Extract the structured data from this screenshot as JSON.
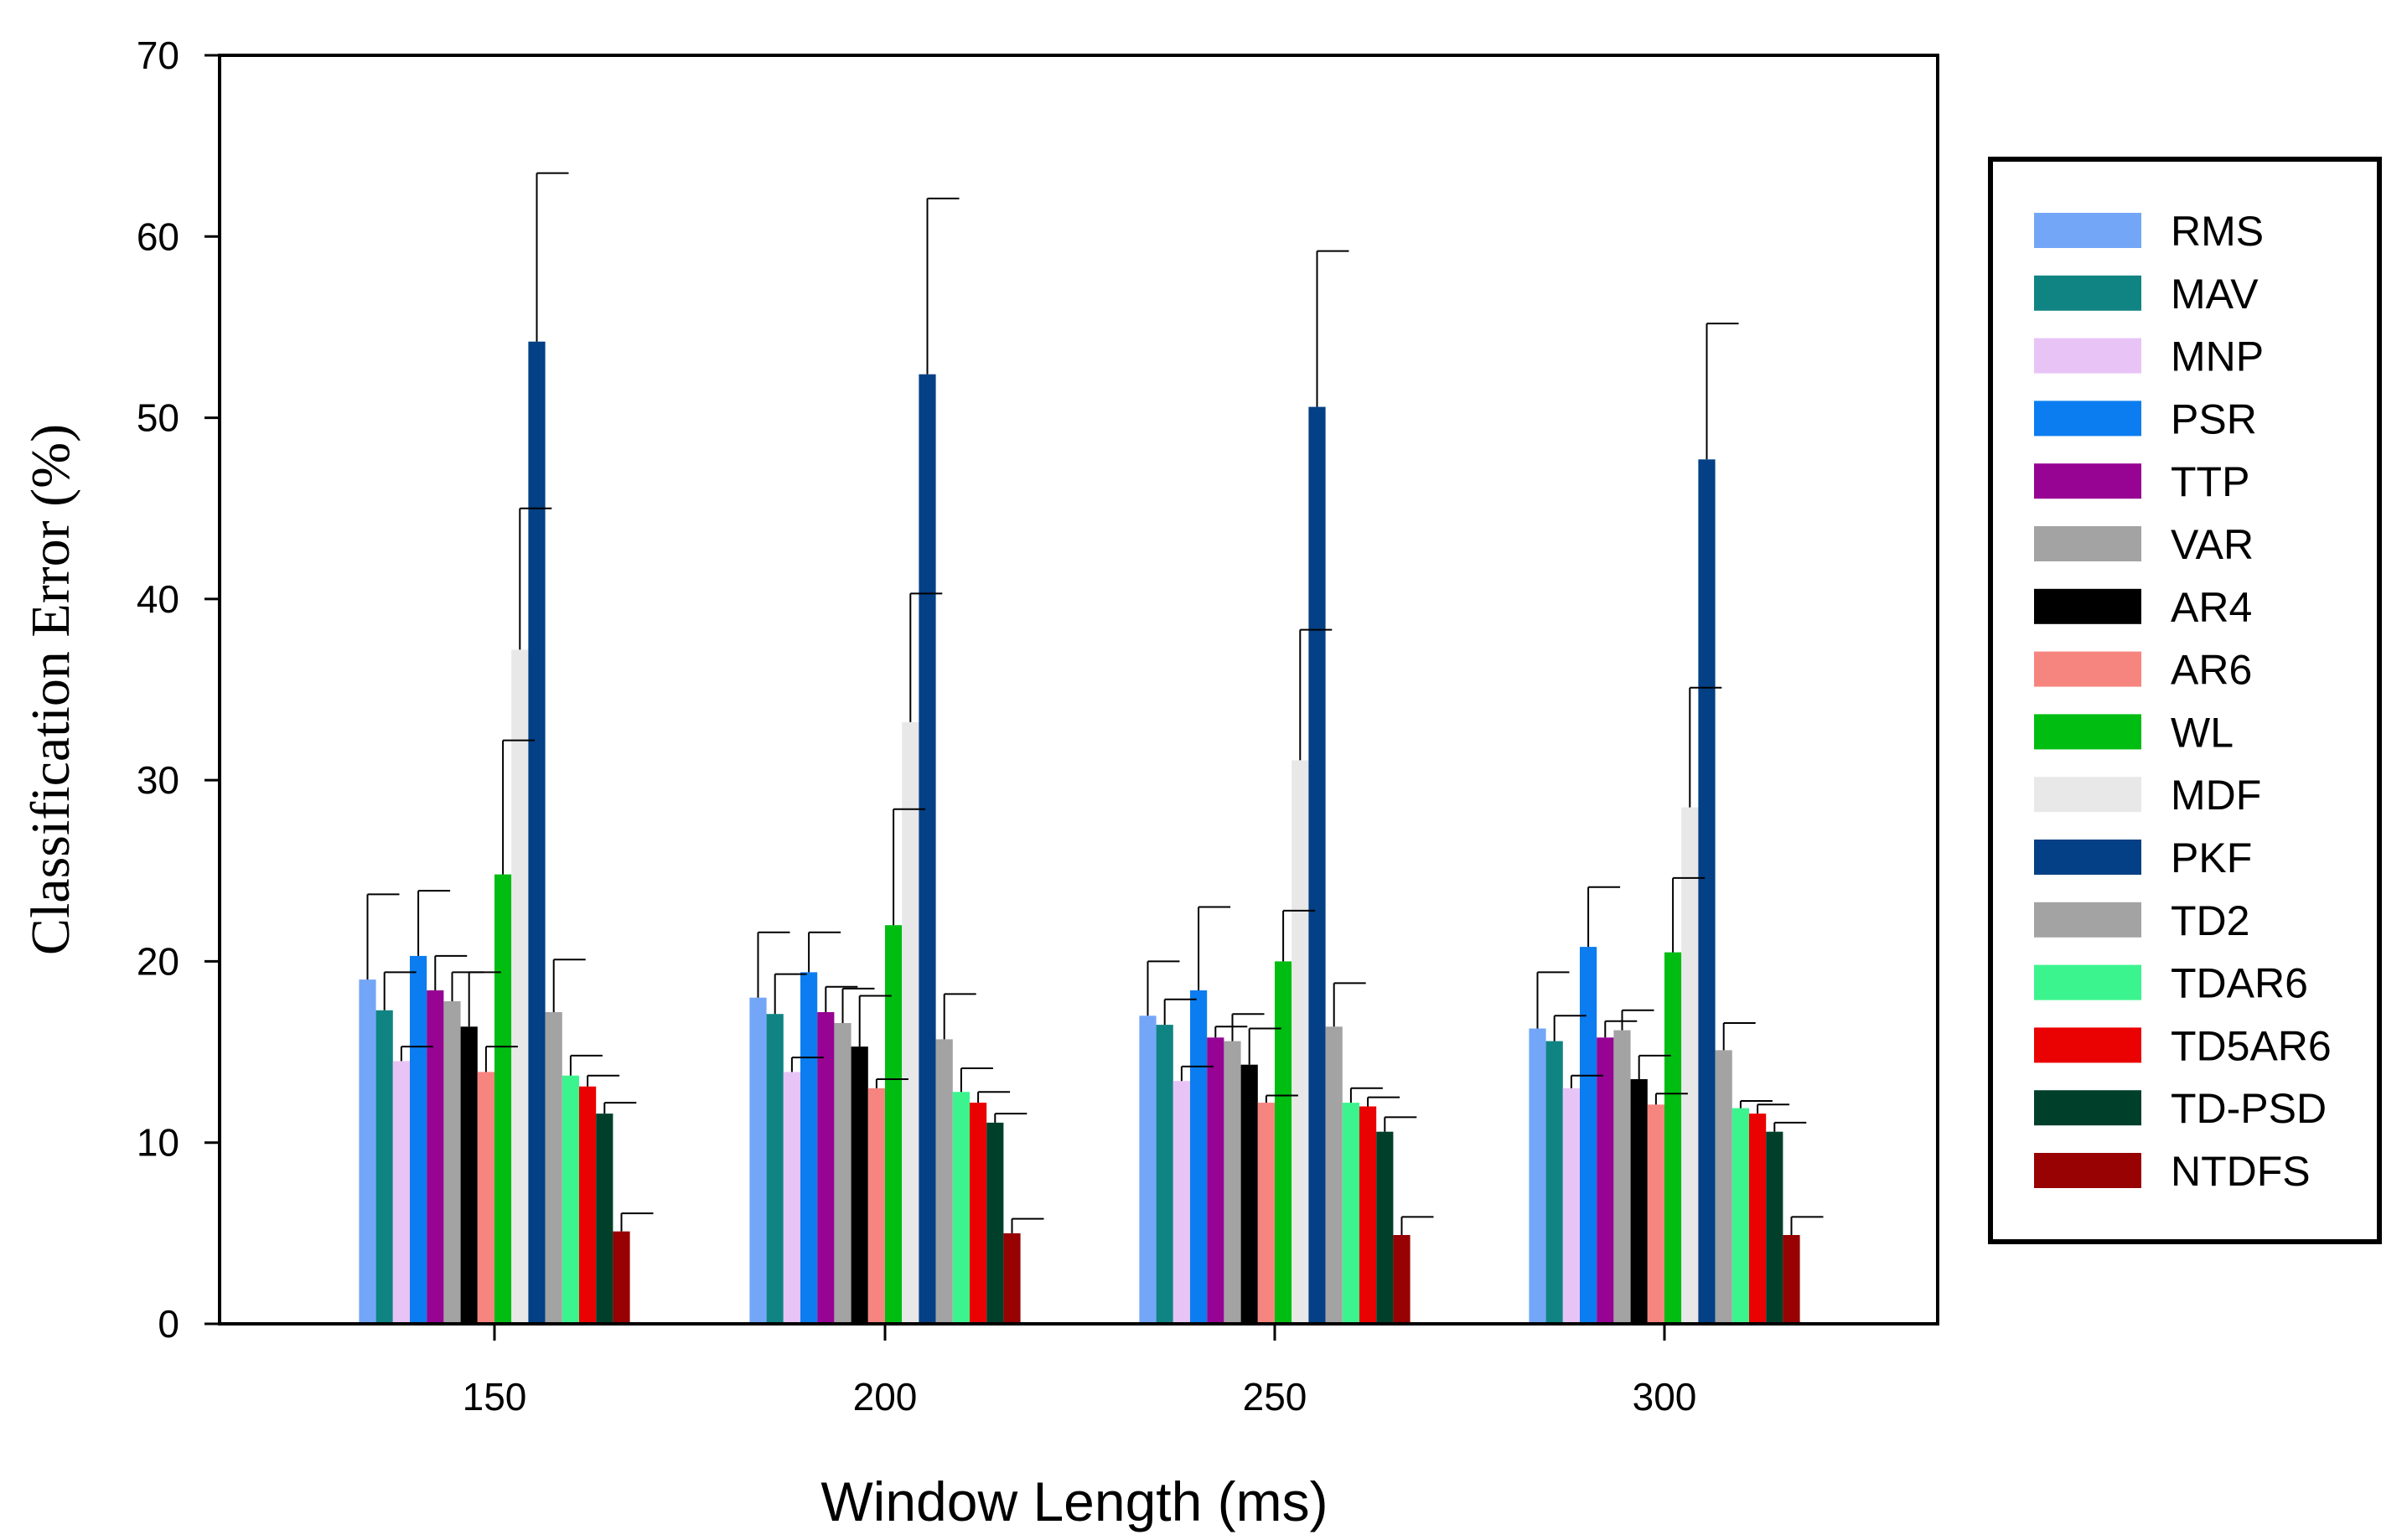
{
  "chart_data": {
    "type": "bar",
    "title": "",
    "xlabel": "Window Length (ms)",
    "ylabel": "Classification Error (%)",
    "ylim": [
      0,
      70
    ],
    "yticks": [
      "0",
      "10",
      "20",
      "30",
      "40",
      "50",
      "60",
      "70"
    ],
    "categories": [
      "150",
      "200",
      "250",
      "300"
    ],
    "legend_position": "right",
    "grid": false,
    "error_bars": true,
    "series": [
      {
        "name": "RMS",
        "color": "#74a6f7",
        "values": [
          19.0,
          18.0,
          17.0,
          16.3
        ],
        "errors": [
          4.7,
          3.6,
          3.0,
          3.1
        ]
      },
      {
        "name": "MAV",
        "color": "#108483",
        "values": [
          17.3,
          17.1,
          16.5,
          15.6
        ],
        "errors": [
          2.1,
          2.2,
          1.4,
          1.4
        ]
      },
      {
        "name": "MNP",
        "color": "#e8c4f6",
        "values": [
          14.5,
          13.9,
          13.4,
          13.0
        ],
        "errors": [
          0.8,
          0.8,
          0.8,
          0.7
        ]
      },
      {
        "name": "PSR",
        "color": "#0b7df0",
        "values": [
          20.3,
          19.4,
          18.4,
          20.8
        ],
        "errors": [
          3.6,
          2.2,
          4.6,
          3.3
        ]
      },
      {
        "name": "TTP",
        "color": "#970393",
        "values": [
          18.4,
          17.2,
          15.8,
          15.8
        ],
        "errors": [
          1.9,
          1.4,
          0.6,
          0.9
        ]
      },
      {
        "name": "VAR",
        "color": "#a3a3a3",
        "values": [
          17.8,
          16.6,
          15.6,
          16.2
        ],
        "errors": [
          1.6,
          1.9,
          1.5,
          1.1
        ]
      },
      {
        "name": "AR4",
        "color": "#000000",
        "values": [
          16.4,
          15.3,
          14.3,
          13.5
        ],
        "errors": [
          3.0,
          2.8,
          2.0,
          1.3
        ]
      },
      {
        "name": "AR6",
        "color": "#f7857f",
        "values": [
          13.9,
          13.0,
          12.2,
          12.1
        ],
        "errors": [
          1.4,
          0.5,
          0.4,
          0.6
        ]
      },
      {
        "name": "WL",
        "color": "#00bd12",
        "values": [
          24.8,
          22.0,
          20.0,
          20.5
        ],
        "errors": [
          7.4,
          6.4,
          2.8,
          4.1
        ]
      },
      {
        "name": "MDF",
        "color": "#e8e8e8",
        "values": [
          37.2,
          33.2,
          31.1,
          28.5
        ],
        "errors": [
          7.8,
          7.1,
          7.2,
          6.6
        ]
      },
      {
        "name": "PKF",
        "color": "#034085",
        "values": [
          54.2,
          52.4,
          50.6,
          47.7
        ],
        "errors": [
          9.3,
          9.7,
          8.6,
          7.5
        ]
      },
      {
        "name": "TD2",
        "color": "#a3a3a3",
        "values": [
          17.2,
          15.7,
          16.4,
          15.1
        ],
        "errors": [
          2.9,
          2.5,
          2.4,
          1.5
        ]
      },
      {
        "name": "TDAR6",
        "color": "#3cf48e",
        "values": [
          13.7,
          12.8,
          12.2,
          11.9
        ],
        "errors": [
          1.1,
          1.3,
          0.8,
          0.4
        ]
      },
      {
        "name": "TD5AR6",
        "color": "#ea0101",
        "values": [
          13.1,
          12.2,
          12.0,
          11.6
        ],
        "errors": [
          0.6,
          0.6,
          0.5,
          0.5
        ]
      },
      {
        "name": "TD-PSD",
        "color": "#00402a",
        "values": [
          11.6,
          11.1,
          10.6,
          10.6
        ],
        "errors": [
          0.6,
          0.5,
          0.8,
          0.5
        ]
      },
      {
        "name": "NTDFS",
        "color": "#980203",
        "values": [
          5.1,
          5.0,
          4.9,
          4.9
        ],
        "errors": [
          1.0,
          0.8,
          1.0,
          1.0
        ]
      }
    ]
  }
}
